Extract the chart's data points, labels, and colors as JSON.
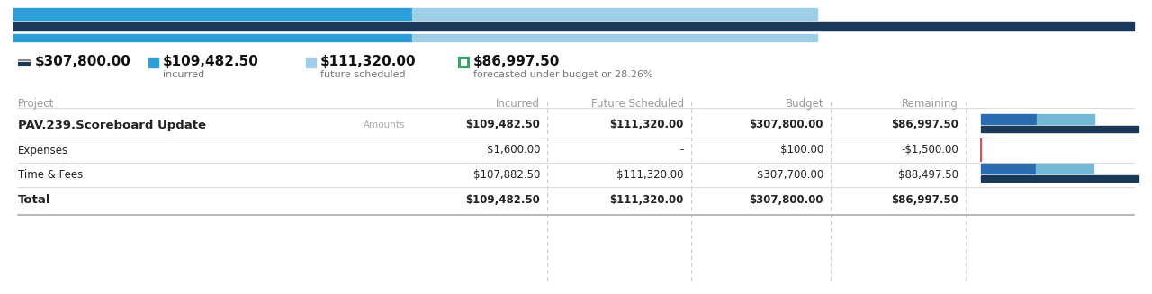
{
  "bar_total": 307800.0,
  "bar_incurred": 109482.5,
  "bar_future": 111320.0,
  "bar_remaining": 86997.5,
  "legend": [
    {
      "value": "$307,800.00",
      "label": "",
      "color": "#1a3a5c",
      "type": "line"
    },
    {
      "value": "$109,482.50",
      "label": "incurred",
      "color": "#2980b9",
      "type": "square"
    },
    {
      "value": "$111,320.00",
      "label": "future scheduled",
      "color": "#aad4ea",
      "type": "square"
    },
    {
      "value": "$86,997.50",
      "label": "forecasted under budget or 28.26%",
      "color": "#27ae60",
      "type": "square_outline"
    }
  ],
  "columns": [
    "Project",
    "Incurred",
    "Future Scheduled",
    "Budget",
    "Remaining"
  ],
  "rows": [
    {
      "project": "PAV.239.Scoreboard Update",
      "sublabel": "Amounts",
      "incurred": "$109,482.50",
      "future": "$111,320.00",
      "budget": "$307,800.00",
      "remaining": "$86,997.50",
      "bold": true,
      "show_bar": true,
      "bar_incurred_pct": 0.3556,
      "bar_future_pct": 0.3617
    },
    {
      "project": "Expenses",
      "sublabel": "",
      "incurred": "$1,600.00",
      "future": "-",
      "budget": "$100.00",
      "remaining": "-$1,500.00",
      "bold": false,
      "show_bar": false,
      "show_red_line": true
    },
    {
      "project": "Time & Fees",
      "sublabel": "",
      "incurred": "$107,882.50",
      "future": "$111,320.00",
      "budget": "$307,700.00",
      "remaining": "$88,497.50",
      "bold": false,
      "show_bar": true,
      "bar_incurred_pct": 0.3505,
      "bar_future_pct": 0.3618
    },
    {
      "project": "Total",
      "sublabel": "",
      "incurred": "$109,482.50",
      "future": "$111,320.00",
      "budget": "$307,800.00",
      "remaining": "$86,997.50",
      "bold": true,
      "show_bar": false,
      "is_total": true
    }
  ],
  "bg_color": "#ffffff",
  "header_text_color": "#999999",
  "row_text_color": "#222222",
  "separator_color": "#dddddd",
  "top_bar_color_incurred": "#2e9fd8",
  "top_bar_color_future": "#a0d0ea",
  "top_bar_color_dark": "#1a3a5c",
  "mini_bar_incurred": "#2e6da4",
  "mini_bar_future": "#6baed6",
  "mini_bar_light": "#aed9f0",
  "mini_bar_dark": "#1a3a5c"
}
